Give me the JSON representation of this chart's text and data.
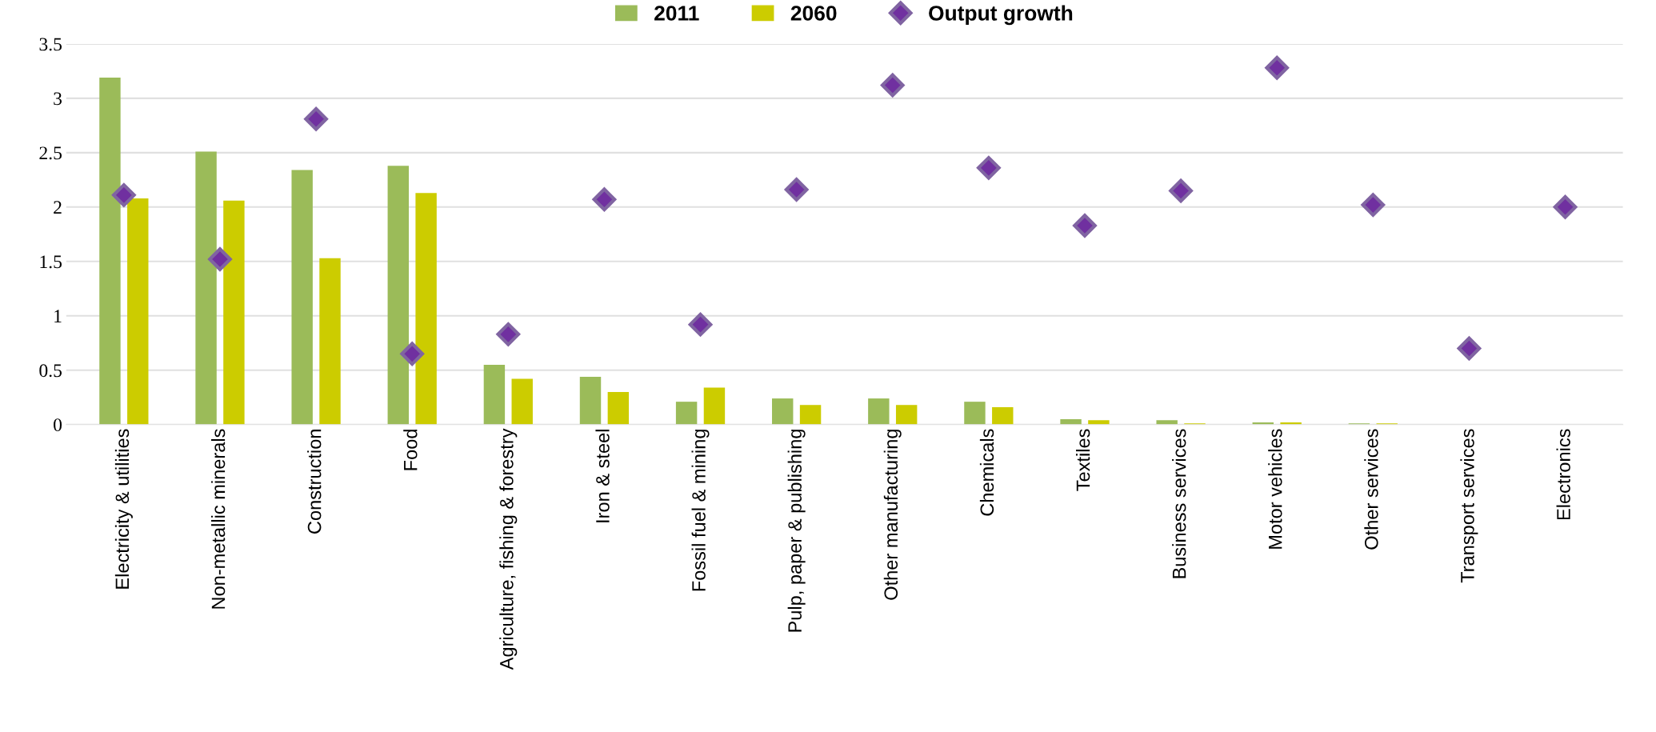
{
  "chart_data": {
    "type": "bar",
    "categories": [
      "Electricity & utilities",
      "Non-metallic minerals",
      "Construction",
      "Food",
      "Agriculture, fishing & forestry",
      "Iron & steel",
      "Fossil fuel & mining",
      "Pulp, paper & publishing",
      "Other manufacturing",
      "Chemicals",
      "Textiles",
      "Business services",
      "Motor vehicles",
      "Other services",
      "Transport services",
      "Electronics"
    ],
    "series": [
      {
        "name": "2011",
        "color": "#9bbb59",
        "values": [
          3.19,
          2.51,
          2.34,
          2.38,
          0.55,
          0.44,
          0.21,
          0.24,
          0.24,
          0.21,
          0.05,
          0.04,
          0.02,
          0.01,
          0,
          0
        ]
      },
      {
        "name": "2060",
        "color": "#cccc00",
        "values": [
          2.08,
          2.06,
          1.53,
          2.13,
          0.42,
          0.3,
          0.34,
          0.18,
          0.18,
          0.16,
          0.04,
          0.01,
          0.02,
          0.01,
          0,
          0
        ]
      },
      {
        "name": "Output growth",
        "type": "scatter",
        "color": "#7030a0",
        "values": [
          2.11,
          1.52,
          2.81,
          0.65,
          0.83,
          2.07,
          0.92,
          2.16,
          3.12,
          2.36,
          1.83,
          2.15,
          3.28,
          2.02,
          0.7,
          2.0
        ]
      }
    ],
    "ylim": [
      0,
      3.5
    ],
    "yticks": [
      0,
      0.5,
      1,
      1.5,
      2,
      2.5,
      3,
      3.5
    ],
    "grid": "y",
    "legend": "top",
    "marker": "diamond"
  }
}
